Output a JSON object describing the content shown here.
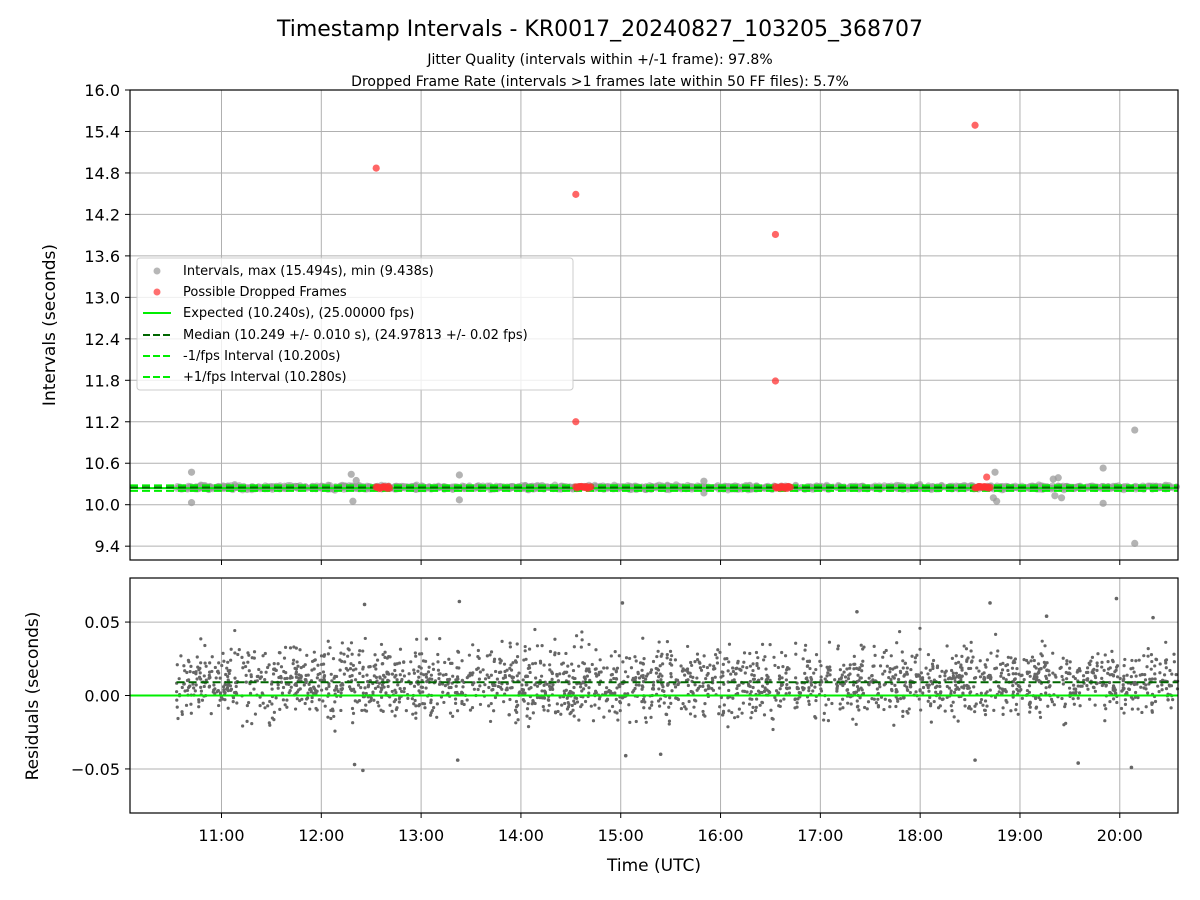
{
  "title": "Timestamp Intervals - KR0017_20240827_103205_368707",
  "subtitle_lines": [
    "Jitter Quality (intervals within +/-1 frame): 97.8%",
    "Dropped Frame Rate (intervals >1 frames late within 50 FF files): 5.7%"
  ],
  "colors": {
    "intervals": "#999999",
    "dropped": "#ff3333",
    "expected": "#00ee00",
    "median": "#006600",
    "residual_points": "#666666",
    "grid": "#b0b0b0"
  },
  "chart_data": [
    {
      "type": "scatter",
      "ylabel": "Intervals (seconds)",
      "xlim": [
        "10:05",
        "20:35"
      ],
      "ylim": [
        9.2,
        16.0
      ],
      "yticks": [
        9.4,
        10.0,
        10.6,
        11.2,
        11.8,
        12.4,
        13.0,
        13.6,
        14.2,
        14.8,
        15.4,
        16.0
      ],
      "ytick_labels": [
        "9.4",
        "10.0",
        "10.6",
        "11.2",
        "11.8",
        "12.4",
        "13.0",
        "13.6",
        "14.2",
        "14.8",
        "15.4",
        "16.0"
      ],
      "grid": true,
      "legend_position": "center-left",
      "legend": [
        {
          "label": "Intervals, max (15.494s), min (9.438s)",
          "kind": "point",
          "color": "#999999"
        },
        {
          "label": "Possible Dropped Frames",
          "kind": "point",
          "color": "#ff3333"
        },
        {
          "label": "Expected (10.240s), (25.00000 fps)",
          "kind": "solid",
          "color": "#00ee00"
        },
        {
          "label": "Median (10.249 +/- 0.010 s), (24.97813 +/- 0.02 fps)",
          "kind": "dashed",
          "color": "#006600"
        },
        {
          "label": "-1/fps Interval (10.200s)",
          "kind": "dashed",
          "color": "#00ee00"
        },
        {
          "label": "+1/fps Interval (10.280s)",
          "kind": "dashed",
          "color": "#00ee00"
        }
      ],
      "reference_lines": [
        {
          "name": "expected",
          "y": 10.24,
          "style": "solid",
          "color": "#00ee00"
        },
        {
          "name": "median",
          "y": 10.249,
          "style": "dashed",
          "color": "#006600"
        },
        {
          "name": "minus-one-frame",
          "y": 10.2,
          "style": "dashed",
          "color": "#00ee00"
        },
        {
          "name": "plus-one-frame",
          "y": 10.28,
          "style": "dashed",
          "color": "#00ee00"
        }
      ],
      "interval_series": {
        "name": "Intervals",
        "x_start": "10:33",
        "x_end": "20:35",
        "typical_min": 10.22,
        "typical_max": 10.28,
        "outliers": [
          {
            "x": "10:42",
            "y": 10.47
          },
          {
            "x": "10:42",
            "y": 10.03
          },
          {
            "x": "12:18",
            "y": 10.44
          },
          {
            "x": "12:19",
            "y": 10.05
          },
          {
            "x": "12:21",
            "y": 10.35
          },
          {
            "x": "13:23",
            "y": 10.43
          },
          {
            "x": "13:23",
            "y": 10.07
          },
          {
            "x": "15:50",
            "y": 10.34
          },
          {
            "x": "15:50",
            "y": 10.17
          },
          {
            "x": "18:44",
            "y": 10.1
          },
          {
            "x": "18:45",
            "y": 10.47
          },
          {
            "x": "18:46",
            "y": 10.05
          },
          {
            "x": "19:20",
            "y": 10.37
          },
          {
            "x": "19:23",
            "y": 10.39
          },
          {
            "x": "19:21",
            "y": 10.13
          },
          {
            "x": "19:25",
            "y": 10.1
          },
          {
            "x": "19:50",
            "y": 10.53
          },
          {
            "x": "19:50",
            "y": 10.02
          },
          {
            "x": "20:09",
            "y": 11.08
          },
          {
            "x": "20:09",
            "y": 9.44
          }
        ]
      },
      "dropped_series": {
        "name": "Possible Dropped Frames",
        "points": [
          {
            "x": "12:33",
            "y": 14.87
          },
          {
            "x": "14:33",
            "y": 14.49
          },
          {
            "x": "14:33",
            "y": 11.2
          },
          {
            "x": "16:33",
            "y": 13.91
          },
          {
            "x": "16:33",
            "y": 11.79
          },
          {
            "x": "18:33",
            "y": 15.49
          },
          {
            "x": "18:40",
            "y": 10.4
          }
        ],
        "clusters": [
          {
            "x_start": "12:33",
            "x_end": "12:41",
            "y": 10.25
          },
          {
            "x_start": "14:33",
            "x_end": "14:42",
            "y": 10.25
          },
          {
            "x_start": "16:33",
            "x_end": "16:42",
            "y": 10.25
          },
          {
            "x_start": "18:33",
            "x_end": "18:42",
            "y": 10.25
          }
        ]
      }
    },
    {
      "type": "scatter",
      "xlabel": "Time (UTC)",
      "ylabel": "Residuals (seconds)",
      "xlim": [
        "10:05",
        "20:35"
      ],
      "ylim": [
        -0.08,
        0.08
      ],
      "yticks": [
        -0.05,
        0.0,
        0.05
      ],
      "ytick_labels": [
        "−0.05",
        "0.00",
        "0.05"
      ],
      "xticks": [
        "11:00",
        "12:00",
        "13:00",
        "14:00",
        "15:00",
        "16:00",
        "17:00",
        "18:00",
        "19:00",
        "20:00"
      ],
      "grid": true,
      "reference_lines": [
        {
          "name": "zero",
          "y": 0.0,
          "style": "solid",
          "color": "#00ee00"
        },
        {
          "name": "median-offset",
          "y": 0.009,
          "style": "dashed",
          "color": "#006600",
          "x_start": "10:33"
        }
      ],
      "residual_series": {
        "name": "Residuals",
        "x_start": "10:33",
        "x_end": "20:35",
        "center": 0.009,
        "typical_spread": 0.012,
        "extremes": [
          {
            "x": "12:26",
            "y": 0.062
          },
          {
            "x": "12:25",
            "y": -0.051
          },
          {
            "x": "12:20",
            "y": -0.047
          },
          {
            "x": "13:23",
            "y": 0.064
          },
          {
            "x": "13:22",
            "y": -0.044
          },
          {
            "x": "15:01",
            "y": 0.063
          },
          {
            "x": "15:03",
            "y": -0.041
          },
          {
            "x": "15:24",
            "y": -0.04
          },
          {
            "x": "17:22",
            "y": 0.057
          },
          {
            "x": "18:33",
            "y": -0.044
          },
          {
            "x": "18:42",
            "y": 0.063
          },
          {
            "x": "19:35",
            "y": -0.046
          },
          {
            "x": "19:58",
            "y": 0.066
          },
          {
            "x": "20:07",
            "y": -0.049
          },
          {
            "x": "20:20",
            "y": 0.053
          },
          {
            "x": "19:16",
            "y": 0.054
          }
        ]
      }
    }
  ]
}
